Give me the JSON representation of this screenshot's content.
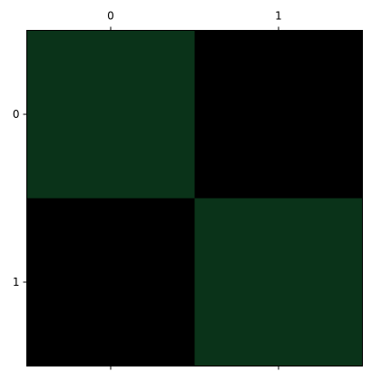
{
  "chart_data": {
    "type": "heatmap",
    "title": "",
    "xlabel": "",
    "ylabel": "",
    "x_categories": [
      "0",
      "1"
    ],
    "y_categories": [
      "0",
      "1"
    ],
    "x_tick_position": "top",
    "values": [
      [
        1,
        0
      ],
      [
        0,
        1
      ]
    ],
    "colormap": {
      "0": "#000000",
      "1": "#0a3319"
    },
    "grid": false
  }
}
